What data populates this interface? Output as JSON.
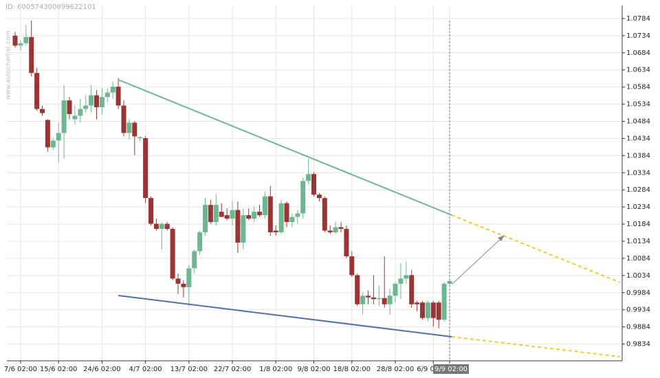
{
  "chart_data": {
    "type": "candlestick",
    "id_label": "ID: 600574300099622101",
    "watermark": "www.autochartist.com",
    "categories": [
      null,
      "7/6 02:00",
      null,
      null,
      null,
      null,
      null,
      null,
      "15/6 02:00",
      null,
      null,
      null,
      null,
      null,
      null,
      null,
      "24/6 02:00",
      null,
      null,
      null,
      null,
      null,
      null,
      null,
      "4/7 02:00",
      null,
      null,
      null,
      null,
      null,
      null,
      null,
      "13/7 02:00",
      null,
      null,
      null,
      null,
      null,
      null,
      null,
      "22/7 02:00",
      null,
      null,
      null,
      null,
      null,
      null,
      null,
      "1/8 02:00",
      null,
      null,
      null,
      null,
      null,
      null,
      "9/8 02:00",
      null,
      null,
      null,
      null,
      null,
      null,
      "18/8 02:00",
      null,
      null,
      null,
      null,
      null,
      null,
      null,
      "28/8 02:00",
      null,
      null,
      null,
      null,
      null,
      null,
      "6/9 02:00",
      null,
      null,
      "9/9 02:00"
    ],
    "open": [
      1.0734,
      1.0705,
      1.0712,
      1.073,
      1.0625,
      1.052,
      1.0488,
      1.0408,
      1.0428,
      1.045,
      1.0545,
      1.049,
      1.05,
      1.052,
      1.053,
      1.056,
      1.0525,
      1.0555,
      1.0568,
      1.0585,
      1.053,
      1.045,
      1.048,
      1.0435,
      1.0435,
      1.026,
      1.0185,
      1.017,
      1.0185,
      1.017,
      1.0025,
      1.001,
      1.0,
      1.0055,
      1.0105,
      1.016,
      1.024,
      1.019,
      1.022,
      1.021,
      1.02,
      1.0225,
      1.013,
      1.021,
      1.02,
      1.022,
      1.021,
      1.0265,
      1.0165,
      1.016,
      1.0245,
      1.019,
      1.0205,
      1.0215,
      1.031,
      1.033,
      1.027,
      1.026,
      1.0165,
      1.016,
      1.0175,
      1.017,
      1.009,
      1.0035,
      0.995,
      0.9975,
      0.997,
      0.9965,
      0.9968,
      0.995,
      0.9975,
      1.001,
      1.0025,
      1.0035,
      0.9955,
      0.9955,
      0.991,
      0.9955,
      0.9955,
      0.9905,
      1.001
    ],
    "high": [
      1.0745,
      1.072,
      1.0765,
      1.0778,
      1.064,
      1.053,
      1.049,
      1.0435,
      1.048,
      1.059,
      1.0555,
      1.053,
      1.055,
      1.056,
      1.059,
      1.0575,
      1.058,
      1.058,
      1.06,
      1.061,
      1.0545,
      1.049,
      1.0485,
      1.044,
      1.044,
      1.0265,
      1.02,
      1.019,
      1.019,
      1.0175,
      1.004,
      1.002,
      1.0065,
      1.011,
      1.0165,
      1.026,
      1.0255,
      1.027,
      1.0245,
      1.023,
      1.025,
      1.025,
      1.023,
      1.023,
      1.0235,
      1.024,
      1.028,
      1.0295,
      1.018,
      1.0255,
      1.025,
      1.0215,
      1.0225,
      1.032,
      1.0375,
      1.0335,
      1.0275,
      1.0265,
      1.018,
      1.019,
      1.019,
      1.018,
      1.0105,
      1.004,
      0.9985,
      0.999,
      1.0035,
      1.0005,
      1.009,
      0.9995,
      1.0015,
      1.007,
      1.0075,
      1.005,
      0.996,
      0.996,
      0.996,
      0.996,
      0.996,
      1.0015,
      1.0025
    ],
    "low": [
      1.07,
      1.069,
      1.0705,
      1.0615,
      1.0515,
      1.05,
      1.0395,
      1.04,
      1.0365,
      1.0375,
      1.049,
      1.0475,
      1.048,
      1.051,
      1.051,
      1.049,
      1.0505,
      1.054,
      1.055,
      1.052,
      1.044,
      1.043,
      1.0385,
      1.0425,
      1.0245,
      1.018,
      1.0165,
      1.011,
      1.0165,
      1.002,
      0.998,
      0.997,
      0.9945,
      1.004,
      1.0095,
      1.015,
      1.0185,
      1.018,
      1.0205,
      1.0195,
      1.018,
      1.01,
      1.011,
      1.0195,
      1.019,
      1.0205,
      1.02,
      1.015,
      1.015,
      1.0155,
      1.0175,
      1.0175,
      1.0185,
      1.02,
      1.03,
      1.0265,
      1.025,
      1.016,
      1.0155,
      1.0155,
      1.016,
      1.0085,
      1.003,
      0.9945,
      0.992,
      0.995,
      0.995,
      0.9945,
      0.994,
      0.992,
      0.9955,
      0.9965,
      1.001,
      0.994,
      0.993,
      0.9905,
      0.99,
      0.9885,
      0.988,
      0.99,
      1.0005
    ],
    "close": [
      1.0705,
      1.0712,
      1.073,
      1.0625,
      1.052,
      1.0508,
      1.0408,
      1.0428,
      1.045,
      1.0545,
      1.0505,
      1.05,
      1.052,
      1.053,
      1.056,
      1.0525,
      1.0555,
      1.0568,
      1.0585,
      1.053,
      1.045,
      1.048,
      1.044,
      1.0438,
      1.026,
      1.0185,
      1.017,
      1.0185,
      1.017,
      1.0025,
      1.001,
      1.0,
      1.0055,
      1.0105,
      1.016,
      1.024,
      1.019,
      1.024,
      1.0205,
      1.02,
      1.0225,
      1.013,
      1.021,
      1.02,
      1.022,
      1.021,
      1.0265,
      1.016,
      1.016,
      1.0245,
      1.019,
      1.0205,
      1.0215,
      1.031,
      1.033,
      1.027,
      1.026,
      1.0165,
      1.016,
      1.0175,
      1.017,
      1.009,
      1.0035,
      0.995,
      0.9975,
      0.997,
      0.9965,
      0.9968,
      0.995,
      0.9975,
      1.001,
      1.0025,
      1.0035,
      0.995,
      0.995,
      0.991,
      0.9955,
      0.991,
      0.9905,
      1.001,
      1.0018
    ],
    "up_color": "#6cb88e",
    "down_color": "#9a3435",
    "ylim": [
      0.9785,
      1.0822
    ],
    "yticks": [
      1.0784,
      1.0734,
      1.0684,
      1.0634,
      1.0584,
      1.0534,
      1.0484,
      1.0434,
      1.0384,
      1.0334,
      1.0284,
      1.0234,
      1.0184,
      1.0134,
      1.0084,
      1.0034,
      0.9984,
      0.9934,
      0.9884,
      0.9834
    ],
    "grid": true
  }
}
